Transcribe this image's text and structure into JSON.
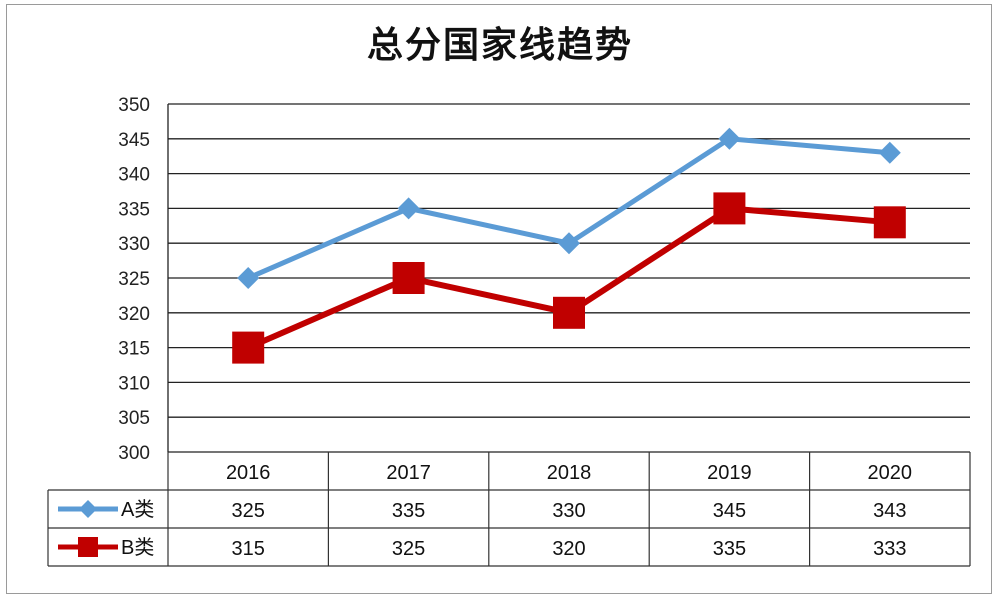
{
  "chart_data": {
    "type": "line",
    "title": "总分国家线趋势",
    "categories": [
      "2016",
      "2017",
      "2018",
      "2019",
      "2020"
    ],
    "ylim": [
      300,
      350
    ],
    "yticks": [
      300,
      305,
      310,
      315,
      320,
      325,
      330,
      335,
      340,
      345,
      350
    ],
    "grid": true,
    "legend": "data-table",
    "series": [
      {
        "name": "A类",
        "values": [
          325,
          335,
          330,
          345,
          343
        ],
        "color": "#5b9bd5",
        "marker": "diamond"
      },
      {
        "name": "B类",
        "values": [
          315,
          325,
          320,
          335,
          333
        ],
        "color": "#c00000",
        "marker": "square"
      }
    ]
  }
}
